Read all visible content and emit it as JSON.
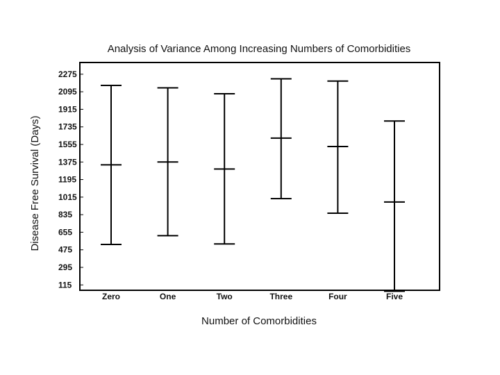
{
  "chart_data": {
    "type": "errorbar",
    "title": "Analysis of Variance Among Increasing Numbers of Comorbidities",
    "xlabel": "Number of Comorbidities",
    "ylabel": "Disease Free Survival (Days)",
    "categories": [
      "Zero",
      "One",
      "Two",
      "Three",
      "Four",
      "Five"
    ],
    "yticks": [
      115,
      295,
      475,
      655,
      835,
      1015,
      1195,
      1375,
      1555,
      1735,
      1915,
      2095,
      2275
    ],
    "ylim": [
      60,
      2395
    ],
    "grid": false,
    "series": [
      {
        "means": [
          1346,
          1375,
          1303,
          1620,
          1534,
          965
        ],
        "lower": [
          530,
          620,
          535,
          1000,
          850,
          50
        ],
        "upper": [
          2160,
          2135,
          2075,
          2228,
          2205,
          1795
        ]
      }
    ]
  }
}
